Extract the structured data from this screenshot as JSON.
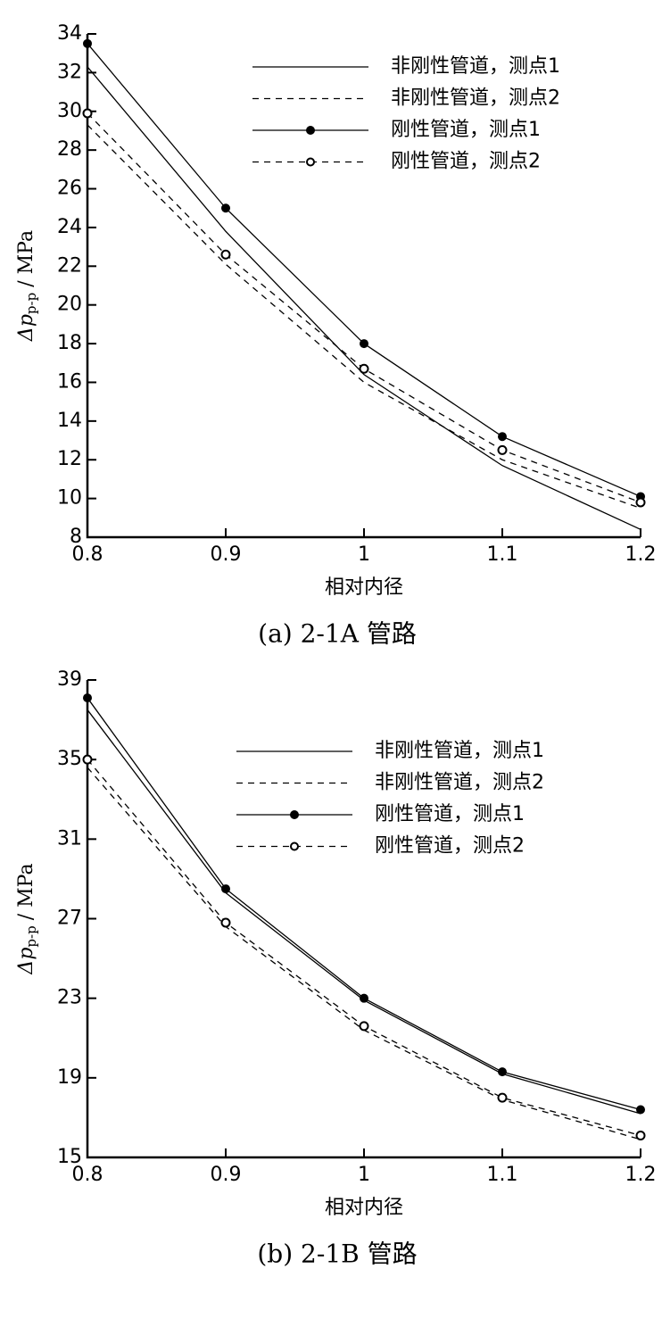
{
  "chart_data": [
    {
      "type": "line",
      "caption": "(a) 2-1A 管路",
      "xlabel": "相对内径",
      "ylabel": [
        "Δp",
        "p-p",
        "/ MPa"
      ],
      "x": [
        0.8,
        0.9,
        1,
        1.1,
        1.2
      ],
      "xlim": [
        0.8,
        1.2
      ],
      "xticks": [
        0.8,
        0.9,
        1,
        1.1,
        1.2
      ],
      "ylim": [
        8,
        34
      ],
      "yticks": [
        8,
        10,
        12,
        14,
        16,
        18,
        20,
        22,
        24,
        26,
        28,
        30,
        32,
        34
      ],
      "legend": "upper right",
      "series": [
        {
          "name": "非刚性管道，测点1",
          "color": "#000000",
          "dashed": false,
          "marker": "none",
          "values": [
            32.3,
            23.8,
            16.4,
            11.7,
            8.4
          ]
        },
        {
          "name": "非刚性管道，测点2",
          "color": "#000000",
          "dashed": true,
          "marker": "none",
          "values": [
            29.3,
            22.1,
            16.0,
            12.0,
            9.5
          ]
        },
        {
          "name": "刚性管道，测点1",
          "color": "#000000",
          "dashed": false,
          "marker": "filled",
          "values": [
            33.5,
            25.0,
            18.0,
            13.2,
            10.1
          ]
        },
        {
          "name": "刚性管道，测点2",
          "color": "#000000",
          "dashed": true,
          "marker": "hollow",
          "values": [
            29.9,
            22.6,
            16.7,
            12.5,
            9.8
          ]
        }
      ]
    },
    {
      "type": "line",
      "caption": "(b) 2-1B 管路",
      "xlabel": "相对内径",
      "ylabel": [
        "Δp",
        "p-p",
        "/ MPa"
      ],
      "x": [
        0.8,
        0.9,
        1,
        1.1,
        1.2
      ],
      "xlim": [
        0.8,
        1.2
      ],
      "xticks": [
        0.8,
        0.9,
        1,
        1.1,
        1.2
      ],
      "ylim": [
        15,
        39
      ],
      "yticks": [
        15,
        19,
        23,
        27,
        31,
        35,
        39
      ],
      "legend": "upper right",
      "series": [
        {
          "name": "非刚性管道，测点1",
          "color": "#000000",
          "dashed": false,
          "marker": "none",
          "values": [
            37.5,
            28.3,
            22.9,
            19.2,
            17.2
          ]
        },
        {
          "name": "非刚性管道，测点2",
          "color": "#000000",
          "dashed": true,
          "marker": "none",
          "values": [
            34.6,
            26.6,
            21.4,
            17.9,
            15.9
          ]
        },
        {
          "name": "刚性管道，测点1",
          "color": "#000000",
          "dashed": false,
          "marker": "filled",
          "values": [
            38.1,
            28.5,
            23.0,
            19.3,
            17.4
          ]
        },
        {
          "name": "刚性管道，测点2",
          "color": "#000000",
          "dashed": true,
          "marker": "hollow",
          "values": [
            35.0,
            26.8,
            21.6,
            18.0,
            16.1
          ]
        }
      ]
    }
  ]
}
